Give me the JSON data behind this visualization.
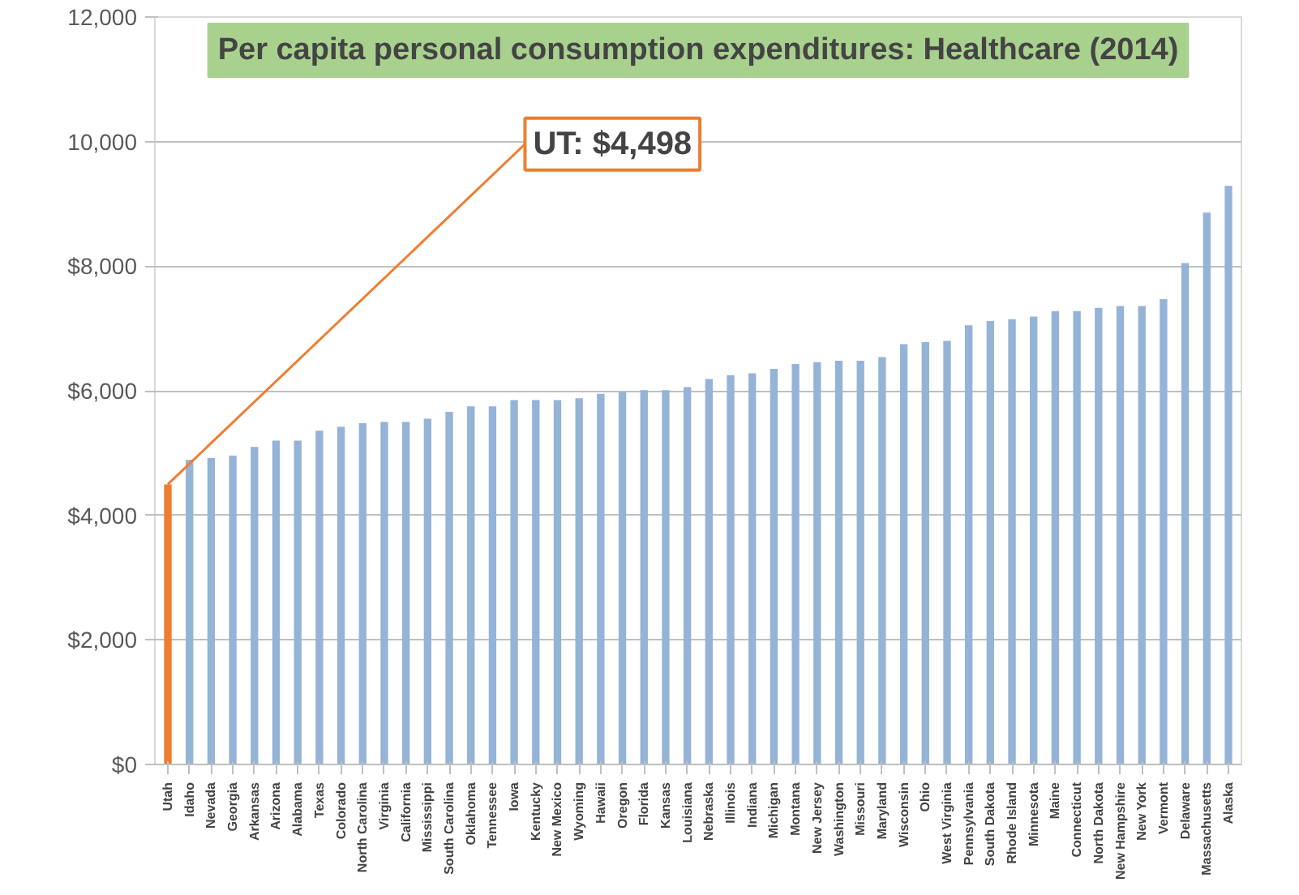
{
  "chart_data": {
    "type": "bar",
    "title": "Per capita personal consumption expenditures: Healthcare (2014)",
    "categories": [
      "Utah",
      "Idaho",
      "Nevada",
      "Georgia",
      "Arkansas",
      "Arizona",
      "Alabama",
      "Texas",
      "Colorado",
      "North Carolina",
      "Virginia",
      "California",
      "Mississippi",
      "South Carolina",
      "Oklahoma",
      "Tennessee",
      "Iowa",
      "Kentucky",
      "New Mexico",
      "Wyoming",
      "Hawaii",
      "Oregon",
      "Florida",
      "Kansas",
      "Louisiana",
      "Nebraska",
      "Illinois",
      "Indiana",
      "Michigan",
      "Montana",
      "New Jersey",
      "Washington",
      "Missouri",
      "Maryland",
      "Wisconsin",
      "Ohio",
      "West Virginia",
      "Pennsylvania",
      "South Dakota",
      "Rhode Island",
      "Minnesota",
      "Maine",
      "Connecticut",
      "North Dakota",
      "New Hampshire",
      "New York",
      "Vermont",
      "Delaware",
      "Massachusetts",
      "Alaska"
    ],
    "values": [
      4498,
      4890,
      4920,
      4960,
      5100,
      5200,
      5200,
      5360,
      5420,
      5480,
      5500,
      5500,
      5550,
      5660,
      5750,
      5750,
      5850,
      5850,
      5850,
      5880,
      5950,
      5980,
      6010,
      6010,
      6060,
      6190,
      6250,
      6280,
      6350,
      6430,
      6460,
      6480,
      6480,
      6540,
      6750,
      6780,
      6800,
      7050,
      7120,
      7150,
      7190,
      7280,
      7280,
      7330,
      7360,
      7360,
      7470,
      8050,
      8860,
      9290
    ],
    "colors": [
      "#ed7d31",
      "#95b3d7",
      "#95b3d7",
      "#95b3d7",
      "#95b3d7",
      "#95b3d7",
      "#95b3d7",
      "#95b3d7",
      "#95b3d7",
      "#95b3d7",
      "#95b3d7",
      "#95b3d7",
      "#95b3d7",
      "#95b3d7",
      "#95b3d7",
      "#95b3d7",
      "#95b3d7",
      "#95b3d7",
      "#95b3d7",
      "#95b3d7",
      "#95b3d7",
      "#95b3d7",
      "#95b3d7",
      "#95b3d7",
      "#95b3d7",
      "#95b3d7",
      "#95b3d7",
      "#95b3d7",
      "#95b3d7",
      "#95b3d7",
      "#95b3d7",
      "#95b3d7",
      "#95b3d7",
      "#95b3d7",
      "#95b3d7",
      "#95b3d7",
      "#95b3d7",
      "#95b3d7",
      "#95b3d7",
      "#95b3d7",
      "#95b3d7",
      "#95b3d7",
      "#95b3d7",
      "#95b3d7",
      "#95b3d7",
      "#95b3d7",
      "#95b3d7",
      "#95b3d7",
      "#95b3d7",
      "#95b3d7"
    ],
    "ylim": [
      0,
      12000
    ],
    "yticks": [
      {
        "value": 0,
        "label": "$0"
      },
      {
        "value": 2000,
        "label": "$2,000"
      },
      {
        "value": 4000,
        "label": "$4,000"
      },
      {
        "value": 6000,
        "label": "$6,000"
      },
      {
        "value": 8000,
        "label": "$8,000"
      },
      {
        "value": 10000,
        "label": "10,000"
      },
      {
        "value": 12000,
        "label": "12,000"
      }
    ],
    "grid": "y",
    "annotations": [
      {
        "text": "UT: $4,498",
        "x": "Utah",
        "y": 4498
      }
    ]
  }
}
